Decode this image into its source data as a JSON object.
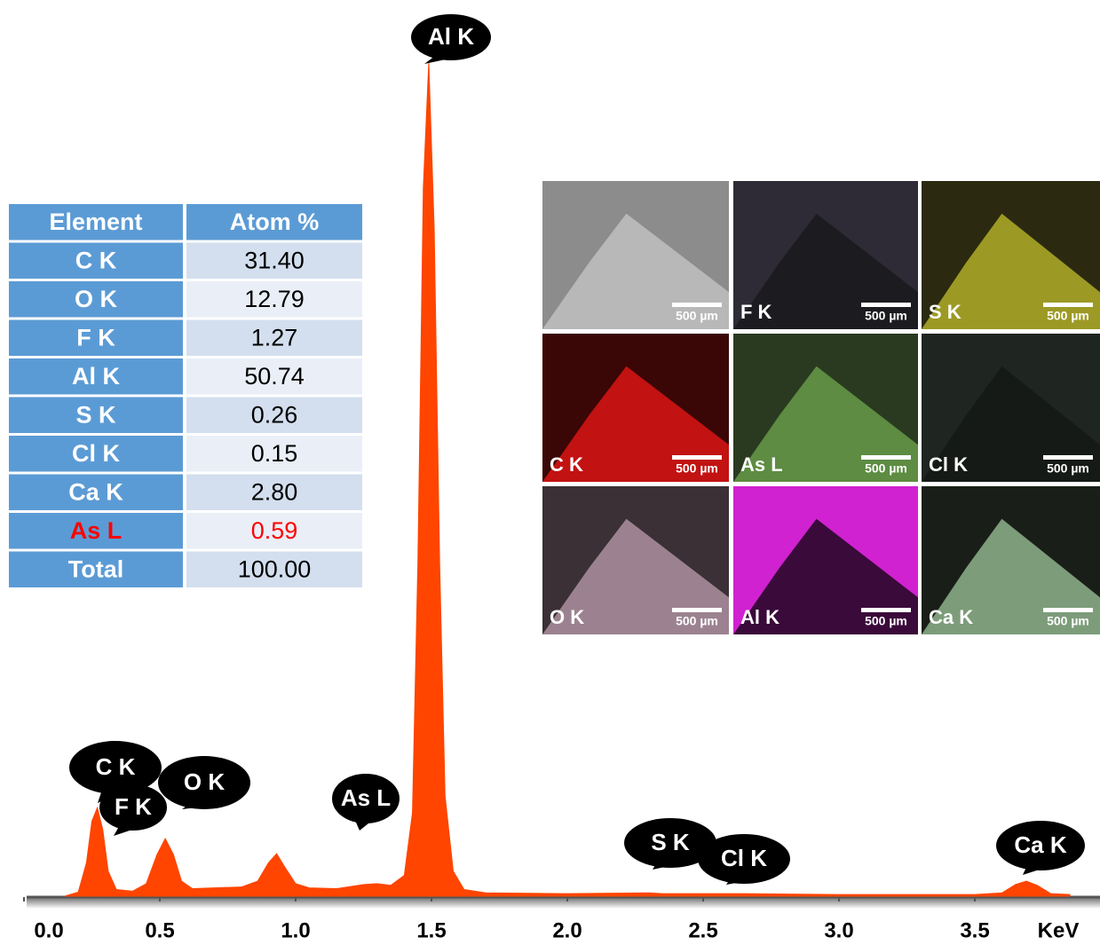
{
  "chart_data": {
    "type": "area",
    "color": "#ff4500",
    "x": [
      0.15,
      0.2,
      0.23,
      0.25,
      0.27,
      0.29,
      0.31,
      0.34,
      0.4,
      0.45,
      0.49,
      0.52,
      0.55,
      0.58,
      0.62,
      0.7,
      0.8,
      0.86,
      0.9,
      0.93,
      0.96,
      1.0,
      1.05,
      1.15,
      1.25,
      1.3,
      1.35,
      1.4,
      1.43,
      1.45,
      1.47,
      1.49,
      1.51,
      1.53,
      1.55,
      1.58,
      1.62,
      1.7,
      2.0,
      2.3,
      2.35,
      2.6,
      2.65,
      3.0,
      3.5,
      3.6,
      3.65,
      3.69,
      3.73,
      3.78,
      3.85
    ],
    "values": [
      0,
      0.5,
      4,
      9,
      10.6,
      8,
      3,
      0.8,
      0.6,
      1.5,
      5,
      6.9,
      5,
      1.8,
      0.9,
      1.0,
      1.1,
      1.8,
      4,
      5.1,
      3.5,
      1.5,
      1.0,
      0.9,
      1.4,
      1.5,
      1.3,
      2.5,
      10,
      40,
      85,
      100,
      80,
      40,
      12,
      3,
      0.8,
      0.4,
      0.3,
      0.4,
      0.3,
      0.3,
      0.3,
      0.2,
      0.2,
      0.4,
      1.4,
      1.8,
      1.3,
      0.3,
      0.2
    ],
    "xlim": [
      0,
      3.96
    ],
    "ylim": [
      0,
      100
    ],
    "xticks": [
      {
        "value": 0,
        "label": "0.0"
      },
      0.5,
      {
        "value": 1,
        "label": "1.0"
      },
      1.5,
      {
        "value": 2,
        "label": "2.0"
      },
      2.5,
      {
        "value": 3,
        "label": "3.0"
      },
      3.5
    ],
    "xlabel": "KeV",
    "annotations": [
      "Al K",
      "C K",
      "F K",
      "O K",
      "As L",
      "S K",
      "Cl K",
      "Ca K"
    ]
  },
  "table": {
    "header": [
      "Element",
      "Atom %"
    ],
    "rows": [
      {
        "cells": [
          "C K",
          "31.40"
        ]
      },
      {
        "cells": [
          "O K",
          "12.79"
        ]
      },
      {
        "cells": [
          "F K",
          "1.27"
        ]
      },
      {
        "cells": [
          "Al K",
          "50.74"
        ]
      },
      {
        "cells": [
          "S K",
          "0.26"
        ]
      },
      {
        "cells": [
          "Cl K",
          "0.15"
        ]
      },
      {
        "cells": [
          "Ca K",
          "2.80"
        ]
      },
      {
        "cells": [
          "As L",
          "0.59"
        ],
        "color": "#ff0000"
      },
      {
        "cells": [
          "Total",
          "100.00"
        ]
      }
    ]
  },
  "maps": [
    {
      "scale_bar": "500 µm"
    },
    {
      "label": "F K",
      "scale_bar": "500 µm"
    },
    {
      "label": "S K",
      "scale_bar": "500 µm"
    },
    {
      "label": "C K",
      "scale_bar": "500 µm"
    },
    {
      "label": "As L",
      "scale_bar": "500 µm"
    },
    {
      "label": "Cl K",
      "scale_bar": "500 µm"
    },
    {
      "label": "O K",
      "scale_bar": "500 µm"
    },
    {
      "label": "Al K",
      "scale_bar": "500 µm"
    },
    {
      "label": "Ca K",
      "scale_bar": "500 µm"
    }
  ]
}
